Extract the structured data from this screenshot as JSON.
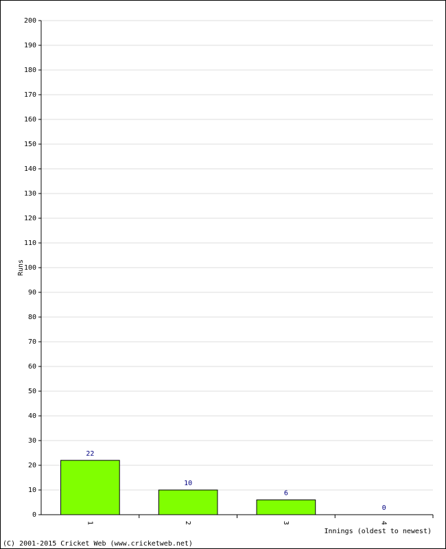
{
  "chart_data": {
    "type": "bar",
    "x_label": "Innings (oldest to newest)",
    "y_label": "Runs",
    "footer": "(C) 2001-2015 Cricket Web (www.cricketweb.net)",
    "categories": [
      "1",
      "2",
      "3",
      "4"
    ],
    "values": [
      22,
      10,
      6,
      0
    ],
    "color": "#80ff00",
    "label_color": "#000080",
    "ylim": [
      0,
      200
    ],
    "yticks": [
      0,
      10,
      20,
      30,
      40,
      50,
      60,
      70,
      80,
      90,
      100,
      110,
      120,
      130,
      140,
      150,
      160,
      170,
      180,
      190,
      200
    ],
    "grid": true
  }
}
